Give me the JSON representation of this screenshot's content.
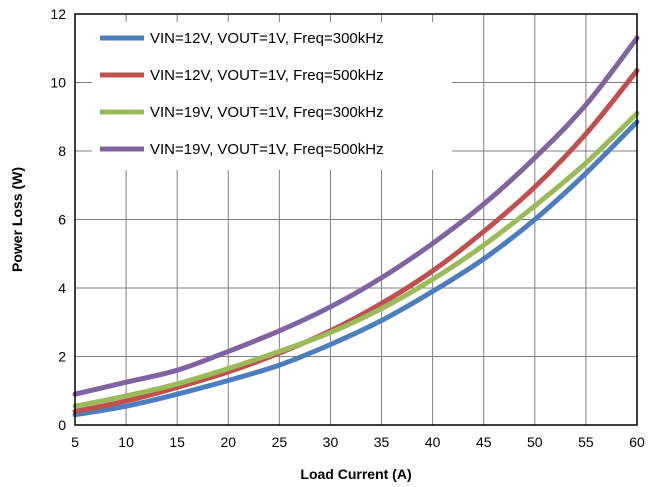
{
  "chart_data": {
    "type": "line",
    "title": "",
    "xlabel": "Load Current (A)",
    "ylabel": "Power Loss (W)",
    "xlim": [
      5,
      60
    ],
    "ylim": [
      0,
      12
    ],
    "x_ticks": [
      5,
      10,
      15,
      20,
      25,
      30,
      35,
      40,
      45,
      50,
      55,
      60
    ],
    "y_ticks": [
      0,
      2,
      4,
      6,
      8,
      10,
      12
    ],
    "grid": true,
    "legend_position": "top-left",
    "x": [
      5,
      10,
      15,
      20,
      25,
      30,
      35,
      40,
      45,
      50,
      55,
      60
    ],
    "series": [
      {
        "name": "VIN=12V, VOUT=1V, Freq=300kHz",
        "color": "#4a7ebf",
        "values": [
          0.3,
          0.55,
          0.9,
          1.3,
          1.75,
          2.35,
          3.05,
          3.9,
          4.85,
          6.0,
          7.35,
          8.85
        ]
      },
      {
        "name": "VIN=12V, VOUT=1V, Freq=500kHz",
        "color": "#c0504d",
        "values": [
          0.4,
          0.7,
          1.1,
          1.55,
          2.1,
          2.75,
          3.55,
          4.5,
          5.65,
          6.95,
          8.5,
          10.35
        ]
      },
      {
        "name": "VIN=19V, VOUT=1V, Freq=300kHz",
        "color": "#9bbb59",
        "values": [
          0.55,
          0.85,
          1.2,
          1.65,
          2.15,
          2.7,
          3.4,
          4.25,
          5.25,
          6.4,
          7.65,
          9.1
        ]
      },
      {
        "name": "VIN=19V, VOUT=1V, Freq=500kHz",
        "color": "#8064a2",
        "values": [
          0.9,
          1.25,
          1.6,
          2.15,
          2.75,
          3.45,
          4.3,
          5.3,
          6.45,
          7.8,
          9.35,
          11.3
        ]
      }
    ]
  }
}
